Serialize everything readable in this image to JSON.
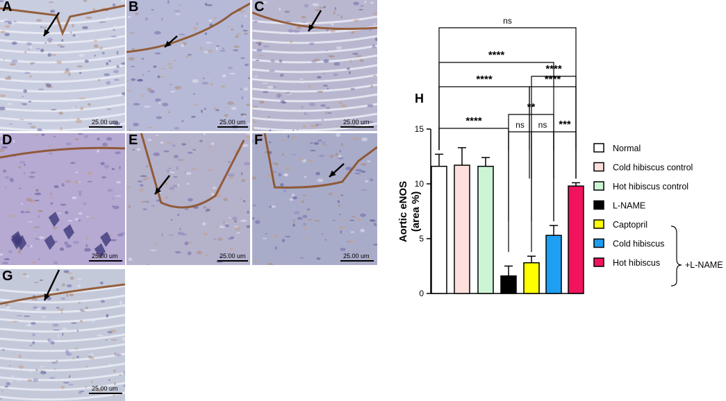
{
  "micrographs": [
    {
      "label": "A",
      "scale": "25.00 um",
      "color": "#c9cde0"
    },
    {
      "label": "B",
      "scale": "25.00 um",
      "color": "#b7bad6"
    },
    {
      "label": "C",
      "scale": "25.00 um",
      "color": "#b9b7cf"
    },
    {
      "label": "D",
      "scale": "25.00 um",
      "color": "#b6a9d2"
    },
    {
      "label": "E",
      "scale": "25.00 um",
      "color": "#b5b2cc"
    },
    {
      "label": "F",
      "scale": "25.00 um",
      "color": "#a9acc9"
    },
    {
      "label": "G",
      "scale": "25.00 um",
      "color": "#c4c9da"
    }
  ],
  "chart_data": {
    "type": "bar",
    "panel_label": "H",
    "ylabel_line1": "Aortic eNOS",
    "ylabel_line2": "(area %)",
    "ylim": [
      0,
      15
    ],
    "yticks": [
      "0",
      "5",
      "10",
      "15"
    ],
    "categories": [
      "Normal",
      "Cold hibiscus control",
      "Hot hibiscus control",
      "L-NAME",
      "Captopril",
      "Cold hibiscus",
      "Hot hibiscus"
    ],
    "values": [
      11.6,
      11.7,
      11.6,
      1.6,
      2.8,
      5.3,
      9.8
    ],
    "errors": [
      1.1,
      1.6,
      0.8,
      0.9,
      0.6,
      0.9,
      0.3
    ],
    "colors": [
      "#ffffff",
      "#fde0dd",
      "#ccf5d6",
      "#000000",
      "#ffff00",
      "#1e9ff2",
      "#f2135d"
    ],
    "bracket_label": "+L-NAME",
    "significance": [
      {
        "from": 0,
        "to": 6,
        "text": "ns"
      },
      {
        "from": 0,
        "to": 5,
        "text": "****"
      },
      {
        "from": 4,
        "to": 6,
        "text": "****"
      },
      {
        "from": 0,
        "to": 3,
        "text": "****"
      },
      {
        "from": 3,
        "to": 6,
        "text": "****"
      },
      {
        "from": 3,
        "to": 5,
        "text": "**"
      },
      {
        "from": 0,
        "to": 3,
        "text": "****"
      },
      {
        "from": 3,
        "to": 4,
        "text": "ns"
      },
      {
        "from": 4,
        "to": 5,
        "text": "ns"
      },
      {
        "from": 5,
        "to": 6,
        "text": "***"
      }
    ]
  }
}
